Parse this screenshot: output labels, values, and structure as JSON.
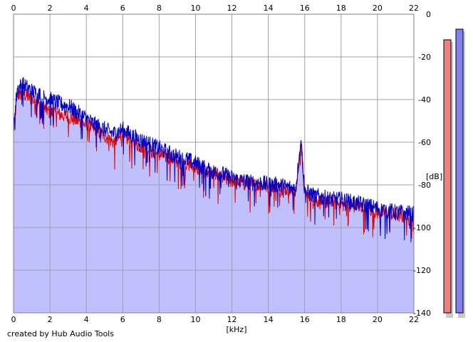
{
  "app": {
    "credit": "created by Hub Audio Tools"
  },
  "chart_data": {
    "type": "area",
    "title": "",
    "xlabel": "[kHz]",
    "ylabel": "[dB]",
    "xlim": [
      0,
      22
    ],
    "ylim": [
      -140,
      0
    ],
    "x_ticks": [
      0,
      2,
      4,
      6,
      8,
      10,
      12,
      14,
      16,
      18,
      20,
      22
    ],
    "y_ticks": [
      0,
      -20,
      -40,
      -60,
      -80,
      -100,
      -120,
      -140
    ],
    "grid": true,
    "colors": {
      "fill": "#c0c0ff",
      "left_channel": "#e00000",
      "right_channel": "#0000c8",
      "grid": "#a0a0a0",
      "meter_left": "#f08080",
      "meter_right": "#8080f0"
    },
    "series": [
      {
        "channel": "left",
        "x": [
          0,
          0.2,
          0.5,
          1,
          1.5,
          2,
          2.5,
          3,
          3.5,
          4,
          4.5,
          5,
          5.5,
          6,
          6.5,
          7,
          7.5,
          8,
          8.5,
          9,
          9.5,
          10,
          10.5,
          11,
          11.5,
          12,
          12.5,
          13,
          13.5,
          14,
          14.5,
          15,
          15.5,
          15.8,
          16,
          16.5,
          17,
          17.5,
          18,
          18.5,
          19,
          19.5,
          20,
          20.5,
          21,
          21.5,
          22
        ],
        "values": [
          -55,
          -38,
          -37,
          -40,
          -43,
          -46,
          -47,
          -48,
          -50,
          -52,
          -54,
          -57,
          -60,
          -57,
          -60,
          -62,
          -64,
          -66,
          -67,
          -69,
          -70,
          -72,
          -74,
          -75,
          -77,
          -78,
          -79,
          -80,
          -80,
          -81,
          -81,
          -82,
          -84,
          -60,
          -85,
          -87,
          -88,
          -88,
          -89,
          -90,
          -90,
          -91,
          -93,
          -93,
          -94,
          -95,
          -96
        ]
      },
      {
        "channel": "right",
        "x": [
          0,
          0.2,
          0.5,
          1,
          1.5,
          2,
          2.5,
          3,
          3.5,
          4,
          4.5,
          5,
          5.5,
          6,
          6.5,
          7,
          7.5,
          8,
          8.5,
          9,
          9.5,
          10,
          10.5,
          11,
          11.5,
          12,
          12.5,
          13,
          13.5,
          14,
          14.5,
          15,
          15.5,
          15.8,
          16,
          16.5,
          17,
          17.5,
          18,
          18.5,
          19,
          19.5,
          20,
          20.5,
          21,
          21.5,
          22
        ],
        "values": [
          -52,
          -35,
          -33,
          -36,
          -38,
          -40,
          -42,
          -43,
          -46,
          -49,
          -52,
          -54,
          -56,
          -54,
          -57,
          -59,
          -61,
          -63,
          -65,
          -67,
          -68,
          -70,
          -72,
          -74,
          -75,
          -77,
          -78,
          -79,
          -79,
          -80,
          -80,
          -81,
          -82,
          -59,
          -83,
          -85,
          -86,
          -87,
          -87,
          -88,
          -89,
          -90,
          -91,
          -92,
          -93,
          -93,
          -94
        ]
      }
    ],
    "meters": [
      {
        "channel": "left",
        "level_db": -12
      },
      {
        "channel": "right",
        "level_db": -7
      }
    ]
  }
}
